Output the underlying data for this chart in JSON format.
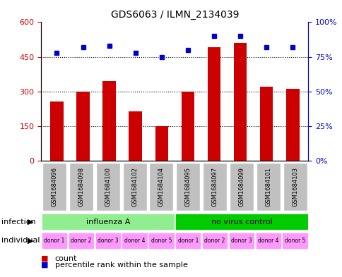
{
  "title": "GDS6063 / ILMN_2134039",
  "samples": [
    "GSM1684096",
    "GSM1684098",
    "GSM1684100",
    "GSM1684102",
    "GSM1684104",
    "GSM1684095",
    "GSM1684097",
    "GSM1684099",
    "GSM1684101",
    "GSM1684103"
  ],
  "counts": [
    255,
    300,
    345,
    215,
    148,
    300,
    490,
    510,
    320,
    310
  ],
  "percentiles": [
    78,
    82,
    83,
    78,
    75,
    80,
    90,
    90,
    82,
    82
  ],
  "ylim_left": [
    0,
    600
  ],
  "ylim_right": [
    0,
    100
  ],
  "yticks_left": [
    0,
    150,
    300,
    450,
    600
  ],
  "yticks_right": [
    0,
    25,
    50,
    75,
    100
  ],
  "yticklabels_right": [
    "0%",
    "25%",
    "50%",
    "75%",
    "100%"
  ],
  "bar_color": "#CC0000",
  "dot_color": "#0000CC",
  "infection_groups": [
    {
      "label": "influenza A",
      "start": 0,
      "end": 5,
      "color": "#90EE90"
    },
    {
      "label": "no virus control",
      "start": 5,
      "end": 10,
      "color": "#00CC00"
    }
  ],
  "individuals": [
    "donor 1",
    "donor 2",
    "donor 3",
    "donor 4",
    "donor 5",
    "donor 1",
    "donor 2",
    "donor 3",
    "donor 4",
    "donor 5"
  ],
  "individual_color": "#FF99FF",
  "sample_bg_color": "#C0C0C0",
  "infection_label": "infection",
  "individual_label": "individual",
  "legend_count_label": "count",
  "legend_percentile_label": "percentile rank within the sample"
}
